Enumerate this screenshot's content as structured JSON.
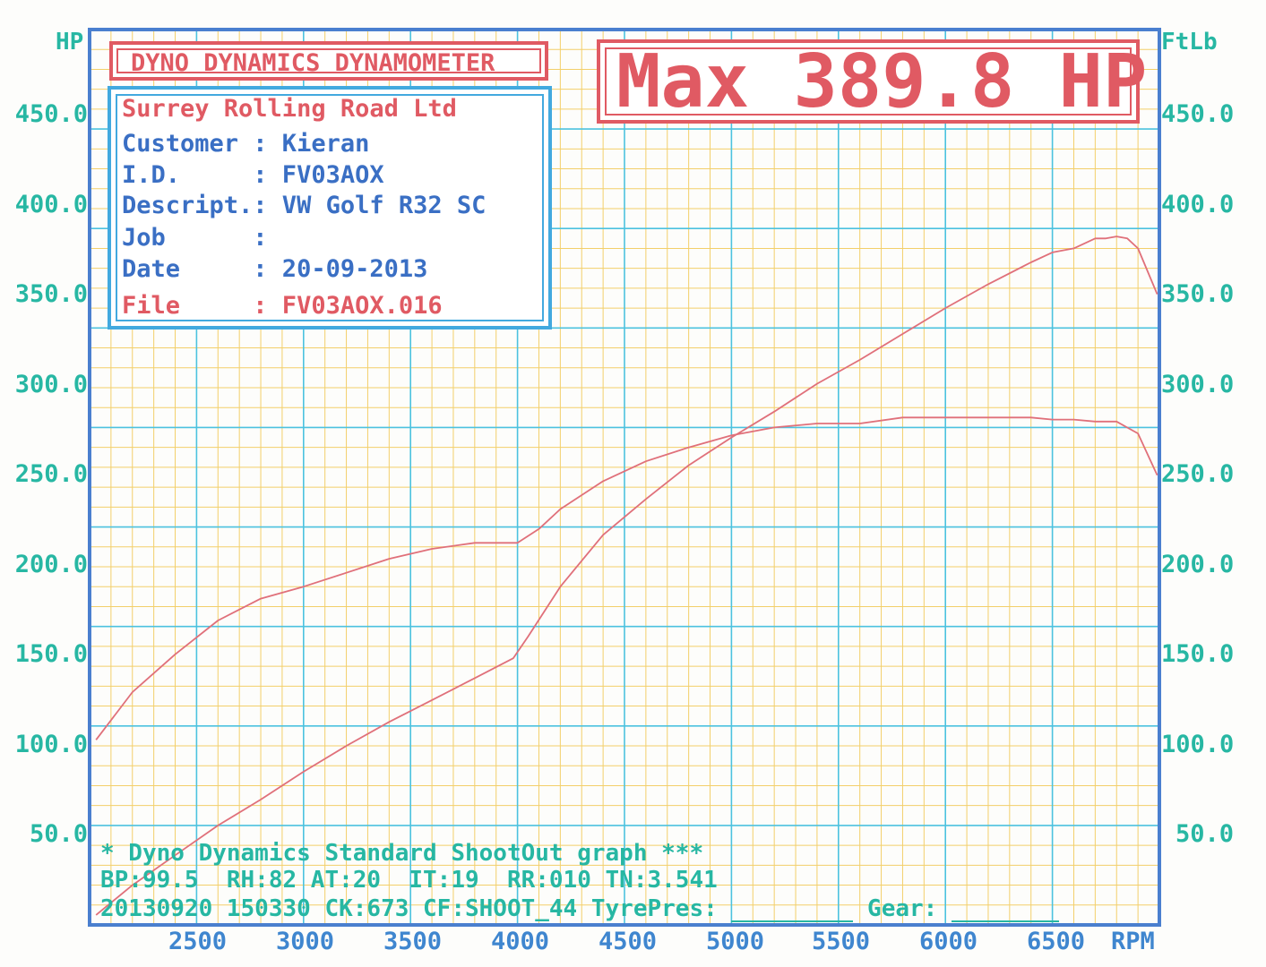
{
  "chart_data": {
    "type": "line",
    "title": "DYNO DYNAMICS DYNAMOMETER",
    "max_label": "Max 389.8 HP",
    "y_left_unit": "HP",
    "y_right_unit": "FtLb",
    "x_unit": "RPM",
    "xlim": [
      2000,
      7000
    ],
    "ylim": [
      50,
      500
    ],
    "x_ticks": [
      "2500",
      "3000",
      "3500",
      "4000",
      "4500",
      "5000",
      "5500",
      "6000",
      "6500"
    ],
    "y_ticks": [
      "50.0",
      "100.0",
      "150.0",
      "200.0",
      "250.0",
      "300.0",
      "350.0",
      "400.0",
      "450.0"
    ],
    "grid": true,
    "series": [
      {
        "color": "#e0707a",
        "x": [
          2030,
          2200,
          2400,
          2600,
          2800,
          3000,
          3200,
          3400,
          3600,
          3800,
          3980,
          4050,
          4200,
          4400,
          4600,
          4800,
          5000,
          5200,
          5400,
          5600,
          5800,
          6000,
          6200,
          6400,
          6500,
          6600,
          6700,
          6750,
          6800,
          6850,
          6900,
          6990
        ],
        "y": [
          55,
          70,
          85,
          100,
          113,
          127,
          140,
          152,
          163,
          174,
          184,
          195,
          220,
          246,
          264,
          281,
          295,
          308,
          322,
          334,
          347,
          360,
          372,
          383,
          388,
          390,
          395,
          395,
          396,
          395,
          390,
          367
        ]
      },
      {
        "color": "#e0707a",
        "x": [
          2030,
          2200,
          2400,
          2600,
          2800,
          3000,
          3200,
          3400,
          3600,
          3800,
          4000,
          4100,
          4200,
          4400,
          4600,
          4800,
          5000,
          5200,
          5400,
          5600,
          5800,
          6000,
          6200,
          6400,
          6500,
          6600,
          6700,
          6800,
          6900,
          6990
        ],
        "y": [
          143,
          167,
          186,
          203,
          214,
          220,
          227,
          234,
          239,
          242,
          242,
          249,
          259,
          273,
          283,
          290,
          296,
          300,
          302,
          302,
          305,
          305,
          305,
          305,
          304,
          304,
          303,
          303,
          297,
          276
        ]
      }
    ]
  },
  "info": {
    "company": "Surrey Rolling Road Ltd",
    "customer": "Customer : Kieran",
    "id": "I.D.     : FV03AOX",
    "descript": "Descript.: VW Golf R32 SC",
    "job": "Job      :",
    "date": "Date     : 20-09-2013",
    "file": "File     : FV03AOX.016"
  },
  "footer": {
    "line1": "* Dyno Dynamics Standard ShootOut graph ***",
    "line2": "BP:99.5  RH:82 AT:20  IT:19  RR:010 TN:3.541",
    "line3_a": "20130920 150330 CK:673 CF:SHOOT_44 TyrePres: ",
    "line3_b": " Gear: "
  }
}
